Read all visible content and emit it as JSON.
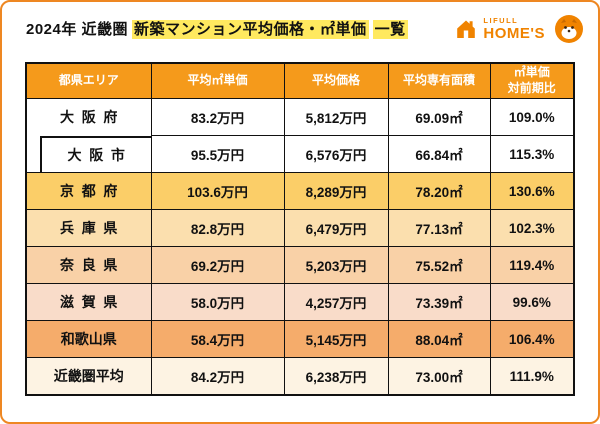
{
  "header": {
    "title_prefix": "2024年 近畿圏",
    "title_highlight_1": "新築マンション平均価格・㎡単価",
    "title_highlight_2": "一覧",
    "logo_top": "LIFULL",
    "logo_main": "HOME'S"
  },
  "style": {
    "header_bg": "#F59A1B",
    "row_bg": [
      "#FFFFFF",
      "#FFFFFF",
      "#FBCE68",
      "#FBDFAE",
      "#F9D1A7",
      "#F9DCC9",
      "#F5AC6B",
      "#FDF3E3"
    ],
    "highlight": "#FFE95F",
    "brand_orange": "#F08300",
    "card_border": "#EE8722",
    "table_border": "#111111"
  },
  "chart_data": {
    "type": "table",
    "title": "2024年 近畿圏 新築マンション平均価格・㎡単価 一覧",
    "columns": [
      "都県エリア",
      "平均㎡単価",
      "平均価格",
      "平均専有面積",
      "㎡単価\n対前期比"
    ],
    "rows": [
      {
        "area": "大阪府",
        "indent": false,
        "unit_price": "83.2万円",
        "price": "5,812万円",
        "size": "69.09㎡",
        "yoy": "109.0%"
      },
      {
        "area": "大阪市",
        "indent": true,
        "unit_price": "95.5万円",
        "price": "6,576万円",
        "size": "66.84㎡",
        "yoy": "115.3%"
      },
      {
        "area": "京都府",
        "indent": false,
        "unit_price": "103.6万円",
        "price": "8,289万円",
        "size": "78.20㎡",
        "yoy": "130.6%"
      },
      {
        "area": "兵庫県",
        "indent": false,
        "unit_price": "82.8万円",
        "price": "6,479万円",
        "size": "77.13㎡",
        "yoy": "102.3%"
      },
      {
        "area": "奈良県",
        "indent": false,
        "unit_price": "69.2万円",
        "price": "5,203万円",
        "size": "75.52㎡",
        "yoy": "119.4%"
      },
      {
        "area": "滋賀県",
        "indent": false,
        "unit_price": "58.0万円",
        "price": "4,257万円",
        "size": "73.39㎡",
        "yoy": "99.6%"
      },
      {
        "area": "和歌山県",
        "indent": false,
        "unit_price": "58.4万円",
        "price": "5,145万円",
        "size": "88.04㎡",
        "yoy": "106.4%"
      },
      {
        "area": "近畿圏平均",
        "indent": false,
        "unit_price": "84.2万円",
        "price": "6,238万円",
        "size": "73.00㎡",
        "yoy": "111.9%"
      }
    ]
  }
}
